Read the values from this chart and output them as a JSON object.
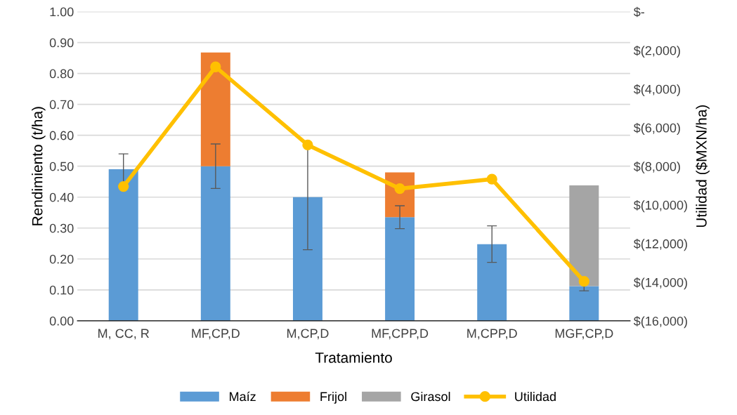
{
  "chart_data": {
    "type": "bar",
    "stacked": true,
    "xlabel": "Tratamiento",
    "ylabel": "Rendimiento (t/ha)",
    "y2label": "Utilidad ($MXN/ha)",
    "categories": [
      "M, CC, R",
      "MF,CP,D",
      "M,CP,D",
      "MF,CPP,D",
      "M,CPP,D",
      "MGF,CP,D"
    ],
    "series": [
      {
        "name": "Maíz",
        "color": "#5b9bd5",
        "values": [
          0.49,
          0.5,
          0.4,
          0.335,
          0.248,
          0.112
        ],
        "errors": [
          0.05,
          0.072,
          0.17,
          0.037,
          0.059,
          0.015
        ]
      },
      {
        "name": "Frijol",
        "color": "#ed7d31",
        "values": [
          null,
          0.368,
          null,
          0.145,
          null,
          null
        ]
      },
      {
        "name": "Girasol",
        "color": "#a5a5a5",
        "values": [
          null,
          null,
          null,
          null,
          null,
          0.326
        ]
      },
      {
        "name": "Utilidad",
        "type": "line",
        "axis": "y2",
        "color": "#ffc000",
        "marker": "circle",
        "values": [
          -9050,
          -2860,
          -6900,
          -9160,
          -8670,
          -13960
        ]
      }
    ],
    "ylim": [
      0,
      1.0
    ],
    "yticks": [
      {
        "value": 0,
        "label": "0.00"
      },
      {
        "value": 0.1,
        "label": "0.10"
      },
      {
        "value": 0.2,
        "label": "0.20"
      },
      {
        "value": 0.3,
        "label": "0.30"
      },
      {
        "value": 0.4,
        "label": "0.40"
      },
      {
        "value": 0.5,
        "label": "0.50"
      },
      {
        "value": 0.6,
        "label": "0.60"
      },
      {
        "value": 0.7,
        "label": "0.70"
      },
      {
        "value": 0.8,
        "label": "0.80"
      },
      {
        "value": 0.9,
        "label": "0.90"
      },
      {
        "value": 1.0,
        "label": "1.00"
      }
    ],
    "y2lim": [
      -16000,
      0
    ],
    "y2ticks": [
      {
        "value": -16000,
        "label": "$(16,000)"
      },
      {
        "value": -14000,
        "label": "$(14,000)"
      },
      {
        "value": -12000,
        "label": "$(12,000)"
      },
      {
        "value": -10000,
        "label": "$(10,000)"
      },
      {
        "value": -8000,
        "label": "$(8,000)"
      },
      {
        "value": -6000,
        "label": "$(6,000)"
      },
      {
        "value": -4000,
        "label": "$(4,000)"
      },
      {
        "value": -2000,
        "label": "$(2,000)"
      },
      {
        "value": 0,
        "label": "$-"
      }
    ],
    "grid": "y",
    "legend": "bottom"
  }
}
